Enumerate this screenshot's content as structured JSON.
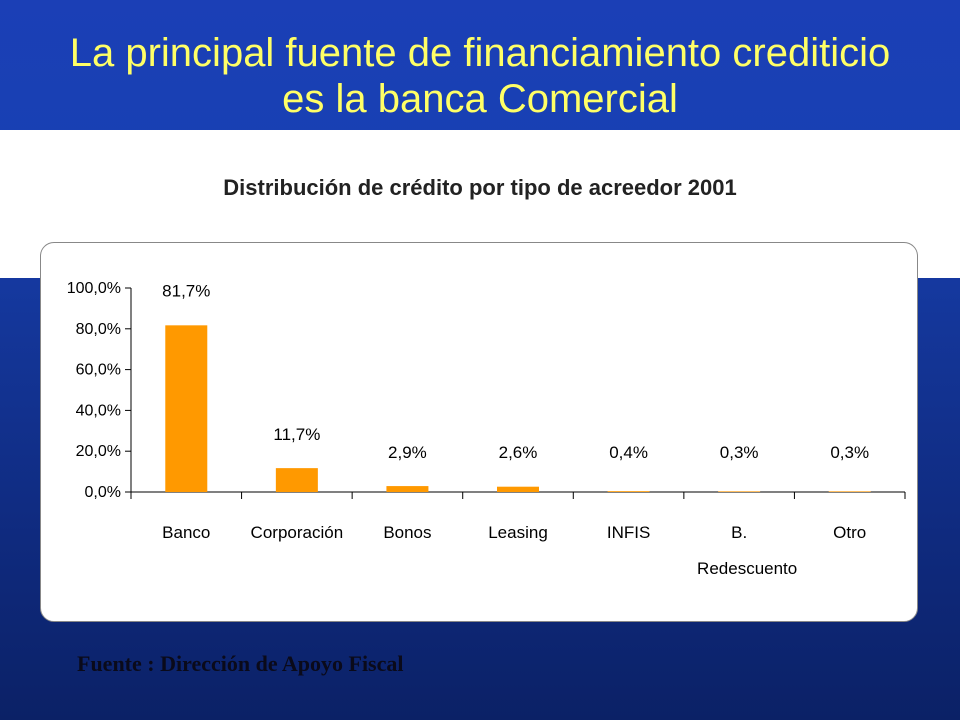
{
  "slide": {
    "title_line1": "La principal fuente de financiamiento crediticio",
    "title_line2": "es  la banca Comercial",
    "source": "Fuente : Dirección de Apoyo Fiscal"
  },
  "chart_data": {
    "type": "bar",
    "title": "Distribución de crédito por tipo de acreedor 2001",
    "categories": [
      "Banco",
      "Corporación",
      "Bonos",
      "Leasing",
      "INFIS",
      "B. Redescuento",
      "Otro"
    ],
    "category_label_lines": [
      [
        "Banco"
      ],
      [
        "Corporación"
      ],
      [
        "Bonos"
      ],
      [
        "Leasing"
      ],
      [
        "INFIS"
      ],
      [
        "B.",
        "Redescuento"
      ],
      [
        "Otro"
      ]
    ],
    "values": [
      81.7,
      11.7,
      2.9,
      2.6,
      0.4,
      0.3,
      0.3
    ],
    "data_labels": [
      "81,7%",
      "11,7%",
      "2,9%",
      "2,6%",
      "0,4%",
      "0,3%",
      "0,3%"
    ],
    "y_ticks": [
      0,
      20,
      40,
      60,
      80,
      100
    ],
    "y_tick_labels": [
      "0,0%",
      "20,0%",
      "40,0%",
      "60,0%",
      "80,0%",
      "100,0%"
    ],
    "ylim": [
      0,
      100
    ],
    "grid": false,
    "xlabel": "",
    "ylabel": "",
    "bar_color": "#ff9900"
  }
}
